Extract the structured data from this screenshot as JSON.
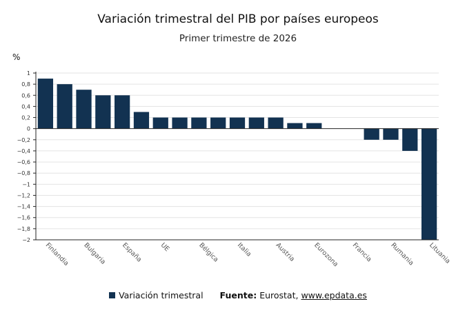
{
  "colors": {
    "bar": "#123251",
    "grid": "#e3e3e3",
    "axis": "#222222"
  },
  "chart_data": {
    "type": "bar",
    "title": "Variación trimestral del PIB por países europeos",
    "subtitle": "Primer trimestre de 2026",
    "ylabel": "%",
    "ylim": [
      -2,
      1
    ],
    "yticks": [
      1,
      0.8,
      0.6,
      0.4,
      0.2,
      0,
      -0.2,
      -0.4,
      -0.6,
      -0.8,
      -1,
      -1.2,
      -1.4,
      -1.6,
      -1.8,
      -2
    ],
    "ytick_labels": [
      "1",
      "0,8",
      "0,6",
      "0,4",
      "0,2",
      "0",
      "−0,2",
      "−0,4",
      "−0,6",
      "−0,8",
      "−1",
      "−1,2",
      "−1,4",
      "−1,6",
      "−1,8",
      "−2"
    ],
    "grid": true,
    "bar_count": 21,
    "values": [
      0.9,
      0.8,
      0.7,
      0.6,
      0.6,
      0.3,
      0.2,
      0.2,
      0.2,
      0.2,
      0.2,
      0.2,
      0.2,
      0.1,
      0.1,
      0,
      0,
      -0.2,
      -0.2,
      -0.4,
      -2.0
    ],
    "category_labels": [
      {
        "index": 0,
        "label": "Finlandia"
      },
      {
        "index": 2,
        "label": "Bulgaria"
      },
      {
        "index": 4,
        "label": "España"
      },
      {
        "index": 6,
        "label": "UE"
      },
      {
        "index": 8,
        "label": "Bélgica"
      },
      {
        "index": 10,
        "label": "Italia"
      },
      {
        "index": 12,
        "label": "Austria"
      },
      {
        "index": 14,
        "label": "Eurozona"
      },
      {
        "index": 16,
        "label": "Francia"
      },
      {
        "index": 18,
        "label": "Rumania"
      },
      {
        "index": 20,
        "label": "Lituania"
      }
    ],
    "series": [
      {
        "name": "Variación trimestral"
      }
    ],
    "legend": "bottom"
  },
  "source": {
    "label": "Fuente:",
    "text": "Eurostat, ",
    "link": "www.epdata.es"
  }
}
